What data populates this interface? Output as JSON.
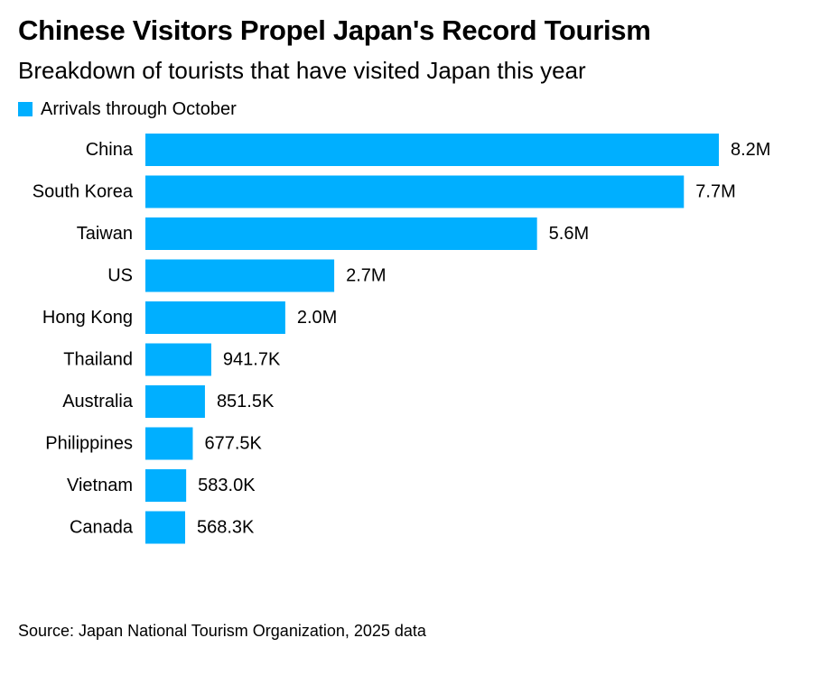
{
  "title": "Chinese Visitors Propel Japan's Record Tourism",
  "subtitle": "Breakdown of tourists that have visited Japan this year",
  "source": "Source: Japan National Tourism Organization, 2025 data",
  "colors": {
    "bar": "#00AFFF",
    "text": "#000000",
    "background": "#FFFFFF"
  },
  "chart_data": {
    "type": "bar",
    "orientation": "horizontal",
    "legend_position": "top-left",
    "grid": false,
    "categories": [
      "China",
      "South Korea",
      "Taiwan",
      "US",
      "Hong Kong",
      "Thailand",
      "Australia",
      "Philippines",
      "Vietnam",
      "Canada"
    ],
    "series": [
      {
        "name": "Arrivals through October",
        "values": [
          8200000,
          7700000,
          5600000,
          2700000,
          2000000,
          941700,
          851500,
          677500,
          583000,
          568300
        ],
        "labels": [
          "8.2M",
          "7.7M",
          "5.6M",
          "2.7M",
          "2.0M",
          "941.7K",
          "851.5K",
          "677.5K",
          "583.0K",
          "568.3K"
        ]
      }
    ]
  }
}
